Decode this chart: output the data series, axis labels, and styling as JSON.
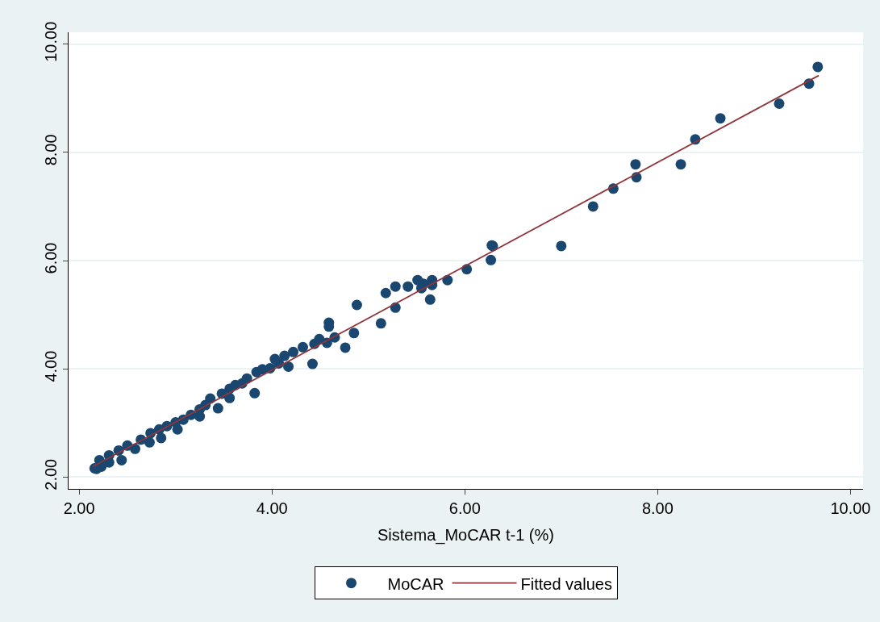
{
  "chart_data": {
    "type": "scatter",
    "xlabel": "Sistema_MoCAR t-1 (%)",
    "grid": "y",
    "legend": "bottom",
    "xlim": [
      1.89,
      10.13
    ],
    "ylim": [
      1.78,
      10.22
    ],
    "xticks": [
      {
        "value": 2,
        "label": "2.00"
      },
      {
        "value": 4,
        "label": "4.00"
      },
      {
        "value": 6,
        "label": "6.00"
      },
      {
        "value": 8,
        "label": "8.00"
      },
      {
        "value": 10,
        "label": "10.00"
      }
    ],
    "yticks": [
      {
        "value": 2,
        "label": "2.00"
      },
      {
        "value": 4,
        "label": "4.00"
      },
      {
        "value": 6,
        "label": "6.00"
      },
      {
        "value": 8,
        "label": "8.00"
      },
      {
        "value": 10,
        "label": "10.00"
      }
    ],
    "series": [
      {
        "name": "MoCAR",
        "marker": "circle",
        "color": "#1a476f",
        "x": [
          9.66,
          9.57,
          9.26,
          8.65,
          8.39,
          8.24,
          7.77,
          7.78,
          7.54,
          7.33,
          7.0,
          6.28,
          6.29,
          6.27,
          6.02,
          5.82,
          5.66,
          5.66,
          5.64,
          5.57,
          5.51,
          5.41,
          5.28,
          5.55,
          5.18,
          5.28,
          5.13,
          4.88,
          4.85,
          4.76,
          4.59,
          4.59,
          4.65,
          4.57,
          4.49,
          4.42,
          4.44,
          4.32,
          4.22,
          4.13,
          4.07,
          4.17,
          4.03,
          3.98,
          3.9,
          3.84,
          3.82,
          3.74,
          3.69,
          3.62,
          3.56,
          3.56,
          3.48,
          3.44,
          3.36,
          3.31,
          3.25,
          3.25,
          3.16,
          3.08,
          3.02,
          3.0,
          2.91,
          2.85,
          2.83,
          2.74,
          2.73,
          2.64,
          2.58,
          2.5,
          2.41,
          2.44,
          2.31,
          2.31,
          2.21,
          2.23,
          2.16,
          2.18
        ],
        "values": [
          9.58,
          9.27,
          8.9,
          8.63,
          8.24,
          7.78,
          7.78,
          7.54,
          7.33,
          7.0,
          6.27,
          6.28,
          6.27,
          6.01,
          5.84,
          5.64,
          5.64,
          5.55,
          5.28,
          5.57,
          5.64,
          5.52,
          5.52,
          5.49,
          5.4,
          5.13,
          4.84,
          5.18,
          4.66,
          4.39,
          4.85,
          4.78,
          4.58,
          4.48,
          4.55,
          4.09,
          4.46,
          4.4,
          4.31,
          4.24,
          4.1,
          4.04,
          4.18,
          4.01,
          3.99,
          3.94,
          3.55,
          3.82,
          3.73,
          3.7,
          3.63,
          3.46,
          3.54,
          3.27,
          3.45,
          3.33,
          3.25,
          3.12,
          3.15,
          3.06,
          2.88,
          3.01,
          2.94,
          2.72,
          2.88,
          2.81,
          2.64,
          2.69,
          2.52,
          2.58,
          2.49,
          2.31,
          2.4,
          2.27,
          2.31,
          2.19,
          2.16,
          2.15
        ]
      },
      {
        "name": "Fitted values",
        "type": "line",
        "marker": "none",
        "color": "#90353b",
        "x": [
          2.14,
          9.67
        ],
        "values": [
          2.19,
          9.42
        ]
      }
    ]
  }
}
